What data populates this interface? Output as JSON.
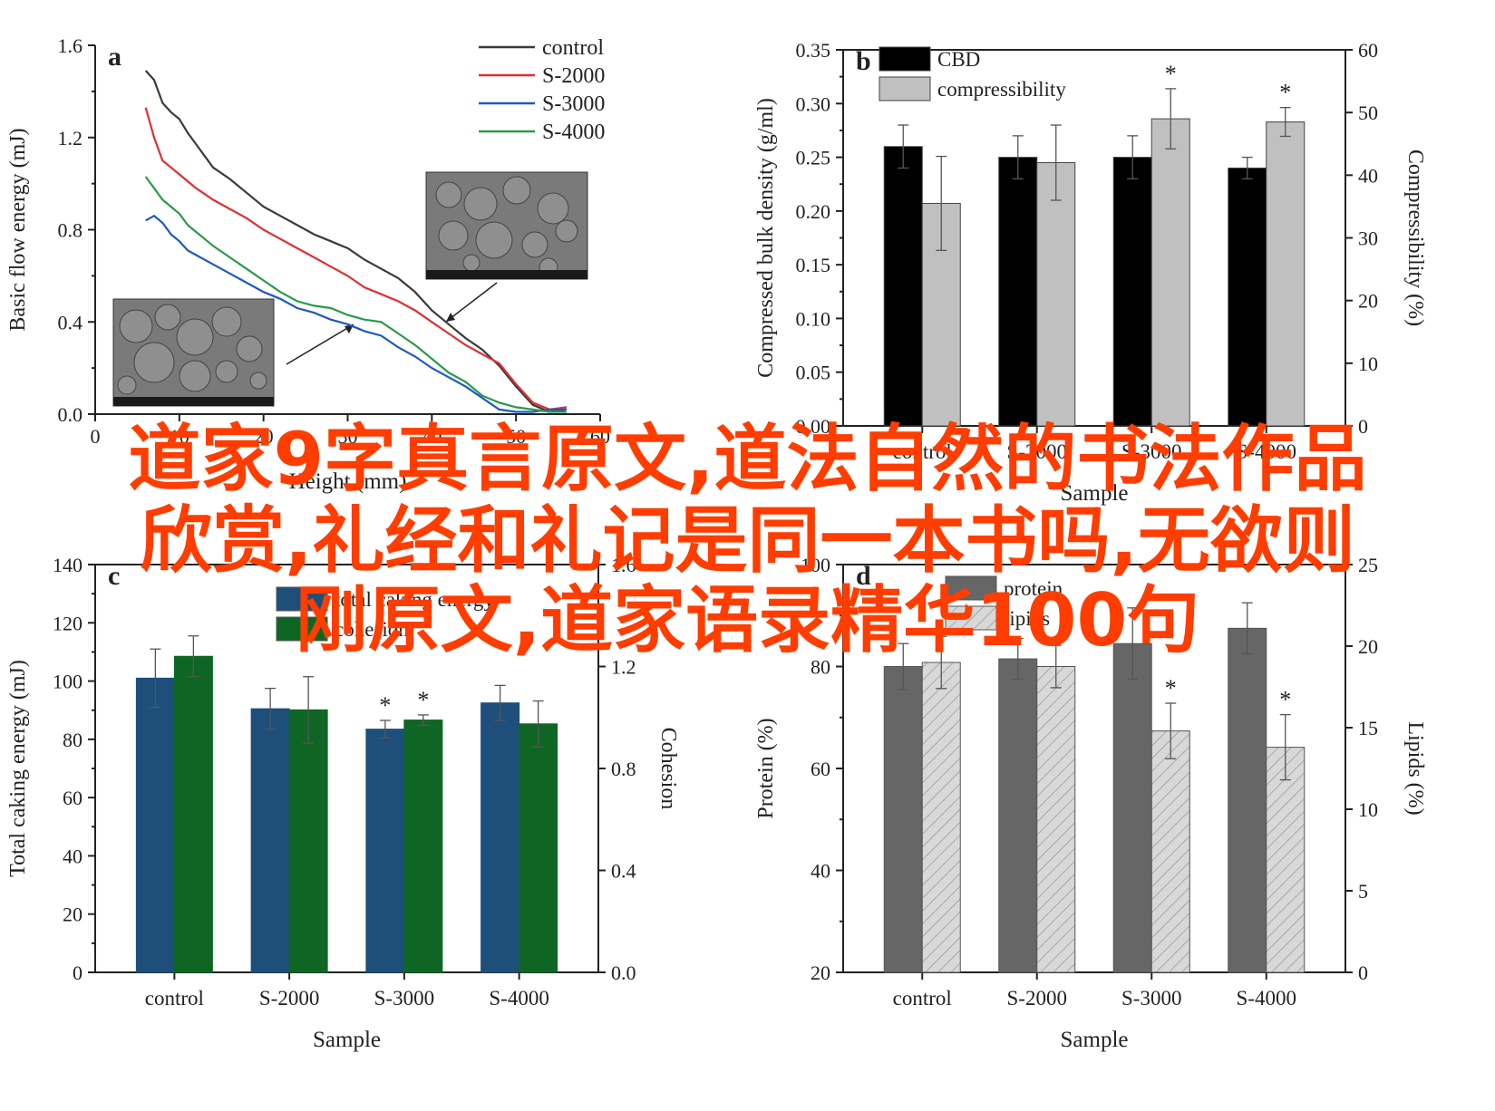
{
  "banner": {
    "line1": "道家9字真言原文,道法自然的书法作品",
    "line2": "欣赏,礼经和礼记是同一本书吗,无欲则",
    "line3": "刚原文,道家语录精华100句",
    "color": "#ff3d00"
  },
  "chart_data": [
    {
      "id": "a",
      "type": "line",
      "panel_label": "a",
      "xlabel": "Height (mm)",
      "ylabel": "Basic flow energy (mJ)",
      "xlim": [
        0,
        60
      ],
      "ylim": [
        0,
        1.6
      ],
      "xticks": [
        "0",
        "10",
        "20",
        "30",
        "40",
        "50",
        "60"
      ],
      "yticks": [
        "0.0",
        "0.4",
        "0.8",
        "1.2",
        "1.6"
      ],
      "series": [
        {
          "name": "control",
          "color": "#3a3a3a",
          "x": [
            6,
            7,
            8,
            9,
            10,
            11,
            12,
            14,
            16,
            18,
            20,
            22,
            24,
            26,
            28,
            30,
            32,
            34,
            36,
            38,
            40,
            42,
            44,
            46,
            48,
            50,
            52,
            54,
            56
          ],
          "y": [
            1.49,
            1.45,
            1.35,
            1.31,
            1.28,
            1.22,
            1.17,
            1.07,
            1.02,
            0.96,
            0.9,
            0.86,
            0.82,
            0.78,
            0.75,
            0.72,
            0.67,
            0.63,
            0.59,
            0.53,
            0.45,
            0.39,
            0.33,
            0.28,
            0.21,
            0.12,
            0.04,
            0.01,
            0.02
          ]
        },
        {
          "name": "S-2000",
          "color": "#e03030",
          "x": [
            6,
            7,
            8,
            9,
            10,
            11,
            12,
            14,
            16,
            18,
            20,
            22,
            24,
            26,
            28,
            30,
            32,
            34,
            36,
            38,
            40,
            42,
            44,
            46,
            48,
            50,
            52,
            54,
            56
          ],
          "y": [
            1.33,
            1.2,
            1.1,
            1.07,
            1.04,
            1.01,
            0.98,
            0.93,
            0.89,
            0.85,
            0.8,
            0.76,
            0.72,
            0.68,
            0.64,
            0.6,
            0.55,
            0.52,
            0.49,
            0.45,
            0.4,
            0.35,
            0.3,
            0.26,
            0.22,
            0.13,
            0.05,
            0.02,
            0.03
          ]
        },
        {
          "name": "S-3000",
          "color": "#1e58c8",
          "x": [
            6,
            7,
            8,
            9,
            10,
            11,
            12,
            14,
            16,
            18,
            20,
            22,
            24,
            26,
            28,
            30,
            32,
            34,
            36,
            38,
            40,
            42,
            44,
            46,
            48,
            50,
            52,
            54,
            56
          ],
          "y": [
            0.84,
            0.86,
            0.83,
            0.78,
            0.75,
            0.71,
            0.69,
            0.65,
            0.61,
            0.57,
            0.53,
            0.5,
            0.46,
            0.44,
            0.41,
            0.39,
            0.36,
            0.34,
            0.29,
            0.25,
            0.2,
            0.16,
            0.12,
            0.07,
            0.02,
            0.01,
            0.01,
            0.02,
            0.02
          ]
        },
        {
          "name": "S-4000",
          "color": "#2a9a4a",
          "x": [
            6,
            7,
            8,
            9,
            10,
            11,
            12,
            14,
            16,
            18,
            20,
            22,
            24,
            26,
            28,
            30,
            32,
            34,
            36,
            38,
            40,
            42,
            44,
            46,
            48,
            50,
            52,
            54,
            56
          ],
          "y": [
            1.03,
            0.98,
            0.93,
            0.9,
            0.87,
            0.82,
            0.79,
            0.73,
            0.68,
            0.63,
            0.58,
            0.53,
            0.49,
            0.47,
            0.46,
            0.43,
            0.41,
            0.4,
            0.35,
            0.3,
            0.24,
            0.18,
            0.14,
            0.08,
            0.05,
            0.03,
            0.02,
            0.01,
            0.01
          ]
        }
      ],
      "legend_position": "top-right",
      "insets": [
        "SEM micrograph (lower-left)",
        "SEM micrograph (upper-right)"
      ]
    },
    {
      "id": "b",
      "type": "bar",
      "panel_label": "b",
      "xlabel": "Sample",
      "ylabel": "Compressed bulk density (g/ml)",
      "y2label": "Compressibility (%)",
      "categories": [
        "control",
        "S-2000",
        "S-3000",
        "S-4000"
      ],
      "ylim": [
        0,
        0.35
      ],
      "y2lim": [
        0,
        60
      ],
      "yticks": [
        "0.00",
        "0.05",
        "0.10",
        "0.15",
        "0.20",
        "0.25",
        "0.30",
        "0.35"
      ],
      "y2ticks": [
        "0",
        "10",
        "20",
        "30",
        "40",
        "50",
        "60"
      ],
      "series": [
        {
          "name": "CBD",
          "axis": "left",
          "color": "#000000",
          "values": [
            0.26,
            0.25,
            0.25,
            0.24
          ],
          "errors": [
            0.02,
            0.02,
            0.02,
            0.01
          ]
        },
        {
          "name": "compressibility",
          "axis": "right",
          "color": "#c0c0c0",
          "values": [
            35.5,
            42,
            49,
            48.5
          ],
          "errors": [
            7.5,
            6,
            4.8,
            2.3
          ]
        }
      ],
      "significance": [
        {
          "series": "compressibility",
          "category": "S-3000",
          "mark": "*"
        },
        {
          "series": "compressibility",
          "category": "S-4000",
          "mark": "*"
        }
      ],
      "legend_position": "top-left"
    },
    {
      "id": "c",
      "type": "bar",
      "panel_label": "c",
      "xlabel": "Sample",
      "ylabel": "Total caking energy (mJ)",
      "y2label": "Cohesion",
      "categories": [
        "control",
        "S-2000",
        "S-3000",
        "S-4000"
      ],
      "ylim": [
        0,
        140
      ],
      "y2lim": [
        0,
        1.6
      ],
      "yticks": [
        "0",
        "20",
        "40",
        "60",
        "80",
        "100",
        "120",
        "140"
      ],
      "y2ticks": [
        "0.0",
        "0.4",
        "0.8",
        "1.2",
        "1.6"
      ],
      "series": [
        {
          "name": "total caking energy",
          "axis": "left",
          "color": "#1d4f7a",
          "values": [
            101,
            90.5,
            83.5,
            92.5
          ],
          "errors": [
            10,
            7,
            3,
            6
          ]
        },
        {
          "name": "cohesion",
          "axis": "right",
          "color": "#0f6624",
          "values": [
            1.24,
            1.03,
            0.99,
            0.975
          ],
          "errors": [
            0.08,
            0.13,
            0.02,
            0.09
          ]
        }
      ],
      "significance": [
        {
          "series": "total caking energy",
          "category": "S-3000",
          "mark": "*"
        },
        {
          "series": "cohesion",
          "category": "S-3000",
          "mark": "*"
        }
      ],
      "legend_position": "top-center"
    },
    {
      "id": "d",
      "type": "bar",
      "panel_label": "d",
      "xlabel": "Sample",
      "ylabel": "Protein (%)",
      "y2label": "Lipids (%)",
      "categories": [
        "control",
        "S-2000",
        "S-3000",
        "S-4000"
      ],
      "ylim": [
        20,
        100
      ],
      "y2lim": [
        0,
        25
      ],
      "yticks": [
        "20",
        "40",
        "60",
        "80",
        "100"
      ],
      "y2ticks": [
        "0",
        "5",
        "10",
        "15",
        "20",
        "25"
      ],
      "series": [
        {
          "name": "protein",
          "axis": "left",
          "color": "#666666",
          "values": [
            80,
            81.5,
            84.5,
            87.5
          ],
          "errors": [
            4.5,
            4,
            7,
            5
          ]
        },
        {
          "name": "lipids",
          "axis": "right",
          "color": "#d8d8d8",
          "hatched": true,
          "values": [
            19,
            18.75,
            14.8,
            13.8
          ],
          "errors": [
            1.6,
            1.3,
            1.7,
            2.0
          ]
        }
      ],
      "significance": [
        {
          "series": "lipids",
          "category": "S-3000",
          "mark": "*"
        },
        {
          "series": "lipids",
          "category": "S-4000",
          "mark": "*"
        }
      ],
      "legend_position": "top-left"
    }
  ]
}
